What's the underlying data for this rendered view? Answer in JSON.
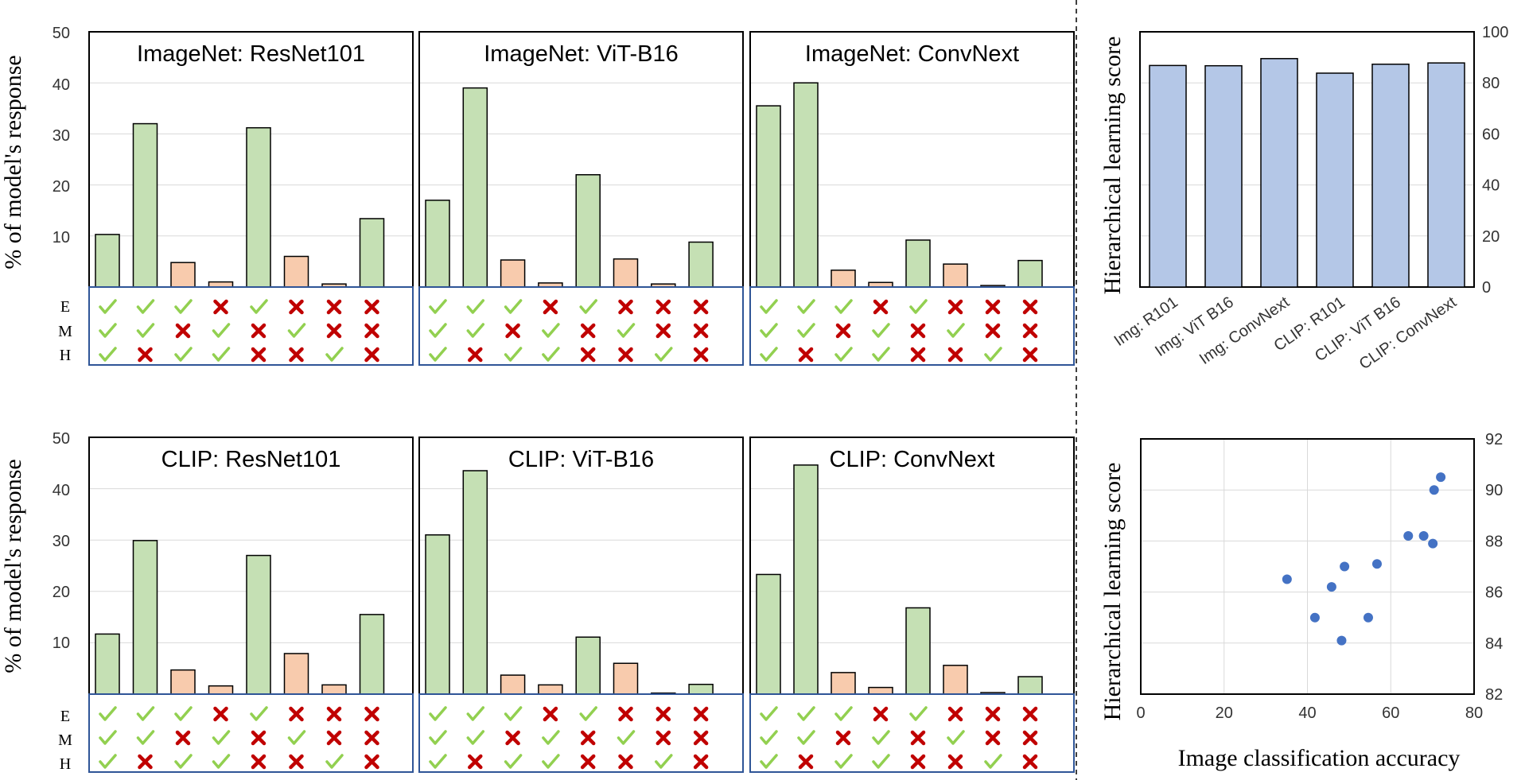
{
  "colors": {
    "green_fill": "#c5e0b4",
    "orange_fill": "#f8cbad",
    "check": "#92d050",
    "cross": "#c00000",
    "blue_bar": "#b4c7e7",
    "blue_point": "#4472c4",
    "grid": "#d9d9d9",
    "table_border": "#2f5597"
  },
  "shared": {
    "ylabel": "% of model's response",
    "yticks": [
      "10",
      "20",
      "30",
      "40",
      "50"
    ],
    "row_labels": [
      "E",
      "M",
      "H"
    ],
    "ylim": [
      0,
      50
    ],
    "bar_colors": [
      "green",
      "green",
      "orange",
      "orange",
      "green",
      "orange",
      "orange",
      "green"
    ],
    "marks": [
      [
        "check",
        "check",
        "check",
        "cross",
        "check",
        "cross",
        "cross",
        "cross"
      ],
      [
        "check",
        "check",
        "cross",
        "check",
        "cross",
        "check",
        "cross",
        "cross"
      ],
      [
        "check",
        "cross",
        "check",
        "check",
        "cross",
        "cross",
        "check",
        "cross"
      ]
    ]
  },
  "chart_data": [
    {
      "type": "bar",
      "title": "ImageNet: ResNet101",
      "values": [
        10.3,
        32.0,
        4.8,
        1.0,
        31.2,
        6.0,
        0.6,
        13.4
      ],
      "ylim": [
        0,
        50
      ]
    },
    {
      "type": "bar",
      "title": "ImageNet: ViT-B16",
      "values": [
        17.0,
        39.0,
        5.3,
        0.8,
        22.0,
        5.5,
        0.6,
        8.8
      ],
      "ylim": [
        0,
        50
      ]
    },
    {
      "type": "bar",
      "title": "ImageNet: ConvNext",
      "values": [
        35.5,
        40.0,
        3.3,
        0.9,
        9.2,
        4.5,
        0.3,
        5.2
      ],
      "ylim": [
        0,
        50
      ]
    },
    {
      "type": "bar",
      "title": "CLIP: ResNet101",
      "values": [
        11.7,
        29.9,
        4.7,
        1.6,
        27.0,
        7.9,
        1.8,
        15.5
      ],
      "ylim": [
        0,
        50
      ]
    },
    {
      "type": "bar",
      "title": "CLIP: ViT-B16",
      "values": [
        31.0,
        43.5,
        3.7,
        1.8,
        11.1,
        6.0,
        0.2,
        1.9
      ],
      "ylim": [
        0,
        50
      ]
    },
    {
      "type": "bar",
      "title": "CLIP: ConvNext",
      "values": [
        23.3,
        44.6,
        4.2,
        1.3,
        16.8,
        5.6,
        0.3,
        3.4
      ],
      "ylim": [
        0,
        50
      ]
    },
    {
      "type": "bar",
      "title": "",
      "ylabel": "Hierarchical learning score",
      "categories": [
        "Img: R101",
        "Img: ViT B16",
        "Img: ConvNext",
        "CLIP: R101",
        "CLIP: ViT B16",
        "CLIP: ConvNext"
      ],
      "values": [
        86.8,
        86.7,
        89.5,
        83.8,
        87.3,
        87.8
      ],
      "ylim": [
        0,
        100
      ],
      "yticks": [
        "0",
        "20",
        "40",
        "60",
        "80",
        "100"
      ],
      "yticks_values": [
        0,
        20,
        40,
        60,
        80,
        100
      ]
    },
    {
      "type": "scatter",
      "title": "",
      "xlabel": "Image classification accuracy",
      "ylabel": "Hierarchical learning score",
      "x": [
        35.1,
        41.8,
        45.8,
        48.2,
        48.9,
        54.6,
        56.7,
        64.2,
        67.9,
        70.1,
        70.4,
        72.0
      ],
      "y": [
        86.5,
        85.0,
        86.2,
        84.1,
        87.0,
        85.0,
        87.1,
        88.2,
        88.2,
        87.9,
        90.0,
        90.5
      ],
      "xlim": [
        0,
        80
      ],
      "ylim": [
        82,
        92
      ],
      "xticks": [
        "0",
        "20",
        "40",
        "60",
        "80"
      ],
      "xticks_values": [
        0,
        20,
        40,
        60,
        80
      ],
      "yticks": [
        "82",
        "84",
        "86",
        "88",
        "90",
        "92"
      ],
      "yticks_values": [
        82,
        84,
        86,
        88,
        90,
        92
      ]
    }
  ]
}
